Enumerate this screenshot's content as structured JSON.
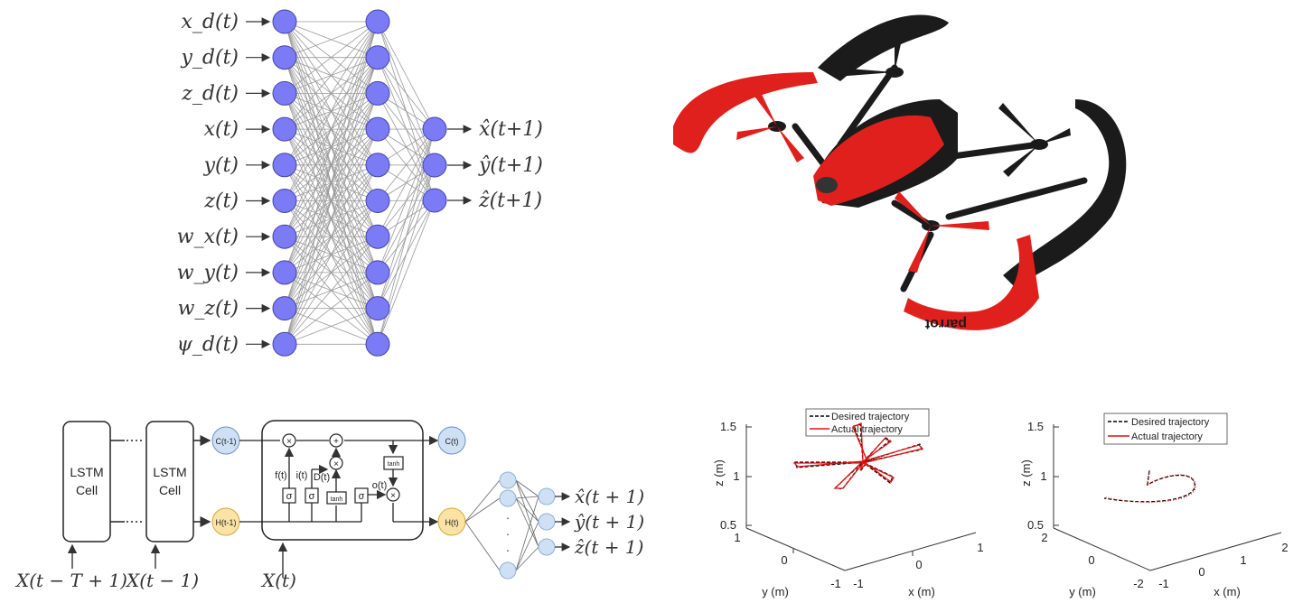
{
  "nn": {
    "inputs": [
      "x_d(t)",
      "y_d(t)",
      "z_d(t)",
      "x(t)",
      "y(t)",
      "z(t)",
      "w_x(t)",
      "w_y(t)",
      "w_z(t)",
      "ψ_d(t)"
    ],
    "outputs": [
      "x̂(t+1)",
      "ŷ(t+1)",
      "ẑ(t+1)"
    ],
    "node_color": "#7b7bf5"
  },
  "drone": {
    "brand_text": "parrot",
    "body_color": "#e0201c",
    "frame_color": "#1b1b1b"
  },
  "lstm": {
    "cell_label_line1": "LSTM",
    "cell_label_line2": "Cell",
    "c_prev": "C(t-1)",
    "h_prev": "H(t-1)",
    "c_out": "C(t)",
    "h_out": "H(t)",
    "gates": {
      "forget": "f(t)",
      "input": "i(t)",
      "candidate": "D(t)",
      "output": "o(t)",
      "sigma": "σ",
      "tanh": "tanh"
    },
    "inputs": [
      "X(t − T + 1)",
      "X(t − 1)",
      "X(t)"
    ],
    "outputs": [
      "x̂(t + 1)",
      "ŷ(t + 1)",
      "ẑ(t + 1)"
    ],
    "c_color": "#cfe0f5",
    "h_color": "#fbe3a6"
  },
  "chart_data": [
    {
      "type": "line",
      "description_3d": true,
      "legend": [
        "Desired trajectory",
        "Actual trajectory"
      ],
      "zlabel": "z (m)",
      "ylabel": "y (m)",
      "xlabel": "x (m)",
      "zticks": [
        "0.5",
        "1",
        "1.5"
      ],
      "yticks": [
        "1",
        "0",
        "-1"
      ],
      "xticks": [
        "-1",
        "0",
        "1"
      ],
      "colors": {
        "desired": "#000000",
        "actual": "#e01010"
      }
    },
    {
      "type": "line",
      "description_3d": true,
      "legend": [
        "Desired trajectory",
        "Actual trajectory"
      ],
      "zlabel": "z (m)",
      "ylabel": "y (m)",
      "xlabel": "x (m)",
      "zticks": [
        "0.5",
        "1",
        "1.5"
      ],
      "yticks": [
        "2",
        "0",
        "-2"
      ],
      "xticks": [
        "-1",
        "0",
        "1",
        "2"
      ],
      "colors": {
        "desired": "#000000",
        "actual": "#e01010"
      }
    }
  ]
}
